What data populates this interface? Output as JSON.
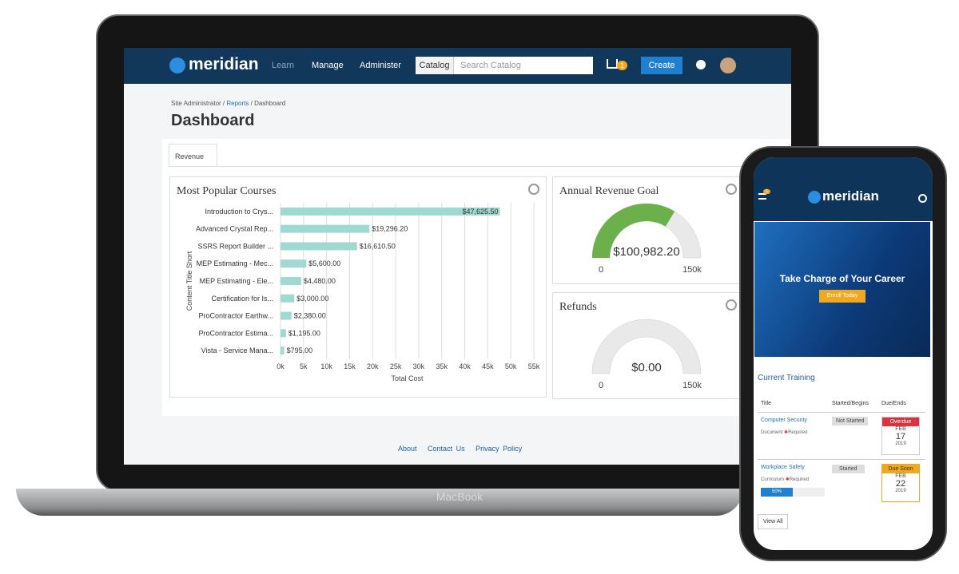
{
  "laptop": {
    "brand": "MacBook",
    "nav": {
      "logo": "meridian",
      "menus": [
        "Learn",
        "Manage",
        "Administer"
      ],
      "catalog_button": "Catalog",
      "search_placeholder": "Search Catalog",
      "cart_count": 1,
      "create_button": "Create"
    },
    "breadcrumbs": [
      "Site Administrator",
      "Reports",
      "Dashboard"
    ],
    "title": "Dashboard",
    "tab": "Revenue",
    "footer_links": [
      "About",
      "Contact Us",
      "Privacy Policy"
    ]
  },
  "chart_data": [
    {
      "type": "bar",
      "orientation": "horizontal",
      "title": "Most Popular Courses",
      "x_label": "Total Cost",
      "y_label": "Content Title Short",
      "categories": [
        "Introduction to Crys...",
        "Advanced Crystal Rep...",
        "SSRS Report Builder ...",
        "MEP Estimating - Mec...",
        "MEP Estimating - Ele...",
        "Certification for Is...",
        "ProContractor Earthw...",
        "ProContractor Estima...",
        "Vista - Service Mana..."
      ],
      "values": [
        47625.5,
        19296.2,
        16610.5,
        5600,
        4480,
        3000,
        2380,
        1195,
        795
      ],
      "value_labels": [
        "$47,625.50",
        "$19,296.20",
        "$16,610.50",
        "$5,600.00",
        "$4,480.00",
        "$3,000.00",
        "$2,380.00",
        "$1,195.00",
        "$795.00"
      ],
      "color": "#9fd9d1",
      "grid": true,
      "xlim": [
        0,
        57000
      ],
      "xticks": [
        {
          "value": 0,
          "label": "0k"
        },
        {
          "value": 5000,
          "label": "5k"
        },
        {
          "value": 10000,
          "label": "10k"
        },
        {
          "value": 15000,
          "label": "15k"
        },
        {
          "value": 20000,
          "label": "20k"
        },
        {
          "value": 25000,
          "label": "25k"
        },
        {
          "value": 30000,
          "label": "30k"
        },
        {
          "value": 35000,
          "label": "35k"
        },
        {
          "value": 40000,
          "label": "40k"
        },
        {
          "value": 45000,
          "label": "45k"
        },
        {
          "value": 50000,
          "label": "50k"
        },
        {
          "value": 55000,
          "label": "55k"
        }
      ]
    },
    {
      "type": "gauge",
      "title": "Annual Revenue Goal",
      "value": 100982.2,
      "value_label": "$100,982.20",
      "range": [
        0,
        150000
      ],
      "range_labels": [
        "0",
        "150k"
      ],
      "color": "#6bb04a"
    },
    {
      "type": "gauge",
      "title": "Refunds",
      "value": 0,
      "value_label": "$0.00",
      "range": [
        0,
        150000
      ],
      "range_labels": [
        "0",
        "150k"
      ],
      "color": "#6bb04a"
    }
  ],
  "phone": {
    "menu_badge": 1,
    "logo": "meridian",
    "banner": {
      "headline": "Take Charge of Your Career",
      "button": "Enroll Today"
    },
    "section_title": "Current Training",
    "table": {
      "headers": [
        "Title",
        "Started/Begins",
        "Due/Ends"
      ],
      "rows": [
        {
          "title": "Computer Security",
          "kind": "Document",
          "flag": "Required",
          "status": "Not Started",
          "due_status": "Overdue",
          "month": "FEB",
          "day": "17",
          "year": "2019"
        },
        {
          "title": "Workplace Safety",
          "kind": "Curriculum",
          "flag": "Required",
          "status": "Started",
          "progress": {
            "value": 50,
            "label": "50%"
          },
          "due_status": "Due Soon",
          "month": "FEB",
          "day": "22",
          "year": "2019"
        }
      ]
    },
    "view_all": "View All"
  }
}
